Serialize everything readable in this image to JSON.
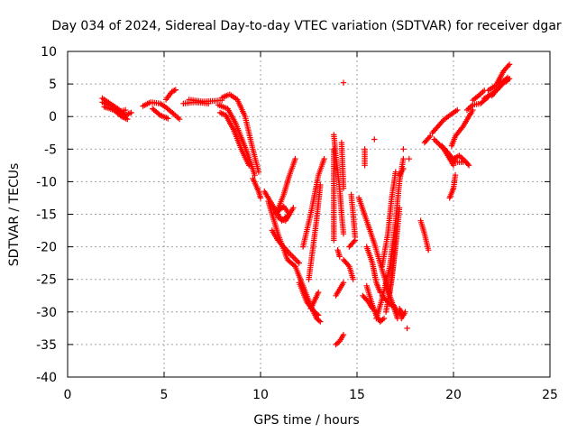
{
  "chart_data": {
    "type": "scatter",
    "title": "Day 034 of 2024, Sidereal Day-to-day VTEC variation (SDTVAR) for receiver dgar",
    "xlabel": "GPS time / hours",
    "ylabel": "SDTVAR / TECUs",
    "xlim": [
      0,
      25
    ],
    "ylim": [
      -40,
      10
    ],
    "x_ticks": [
      "0",
      "5",
      "10",
      "15",
      "20",
      "25"
    ],
    "y_ticks": [
      "10",
      "5",
      "0",
      "-5",
      "-10",
      "-15",
      "-20",
      "-25",
      "-30",
      "-35",
      "-40"
    ],
    "grid": true,
    "marker": "plus",
    "color": "#ff0000",
    "series": [
      {
        "segments": [
          [
            [
              1.8,
              2.8
            ],
            [
              2.2,
              2.0
            ],
            [
              2.6,
              1.2
            ],
            [
              3.0,
              0.2
            ],
            [
              3.3,
              0.6
            ]
          ],
          [
            [
              1.9,
              1.5
            ],
            [
              2.4,
              1.0
            ],
            [
              2.8,
              0.0
            ],
            [
              3.1,
              -0.4
            ]
          ],
          [
            [
              1.8,
              2.2
            ],
            [
              2.3,
              1.6
            ],
            [
              2.7,
              0.8
            ],
            [
              3.0,
              1.0
            ]
          ],
          [
            [
              3.9,
              1.6
            ],
            [
              4.3,
              2.2
            ],
            [
              4.8,
              2.0
            ],
            [
              5.1,
              1.4
            ],
            [
              5.5,
              0.4
            ],
            [
              5.8,
              -0.4
            ]
          ],
          [
            [
              4.4,
              1.2
            ],
            [
              4.8,
              0.2
            ],
            [
              5.2,
              -0.3
            ]
          ],
          [
            [
              5.1,
              2.6
            ],
            [
              5.4,
              3.8
            ],
            [
              5.6,
              4.1
            ]
          ],
          [
            [
              6.3,
              2.6
            ],
            [
              7.0,
              2.3
            ],
            [
              7.6,
              2.4
            ],
            [
              8.0,
              2.5
            ]
          ],
          [
            [
              6.0,
              2.0
            ],
            [
              6.6,
              2.2
            ],
            [
              7.3,
              2.0
            ]
          ],
          [
            [
              8.0,
              2.9
            ],
            [
              8.4,
              3.4
            ],
            [
              8.8,
              2.6
            ],
            [
              9.2,
              0.0
            ],
            [
              9.6,
              -5.0
            ],
            [
              9.9,
              -8.5
            ]
          ],
          [
            [
              7.8,
              1.8
            ],
            [
              8.3,
              1.2
            ],
            [
              8.7,
              -1.0
            ],
            [
              9.0,
              -3.2
            ],
            [
              9.3,
              -5.5
            ],
            [
              9.7,
              -9.0
            ]
          ],
          [
            [
              7.9,
              0.6
            ],
            [
              8.2,
              0.2
            ],
            [
              8.6,
              -2.0
            ],
            [
              9.0,
              -5.0
            ],
            [
              9.4,
              -7.5
            ]
          ],
          [
            [
              9.6,
              -9.5
            ],
            [
              9.9,
              -11.5
            ],
            [
              10.0,
              -12.5
            ]
          ],
          [
            [
              10.2,
              -11.5
            ],
            [
              10.7,
              -14.0
            ],
            [
              11.1,
              -16.0
            ],
            [
              11.5,
              -15.0
            ],
            [
              11.2,
              -13.8
            ],
            [
              10.8,
              -14.8
            ]
          ],
          [
            [
              10.4,
              -13.0
            ],
            [
              10.9,
              -18.0
            ],
            [
              11.4,
              -22.0
            ],
            [
              11.8,
              -23.0
            ]
          ],
          [
            [
              10.8,
              -15.0
            ],
            [
              11.2,
              -12.0
            ],
            [
              11.5,
              -9.0
            ],
            [
              11.8,
              -6.5
            ]
          ],
          [
            [
              10.9,
              -15.5
            ],
            [
              11.3,
              -16.0
            ],
            [
              11.7,
              -14.0
            ]
          ],
          [
            [
              10.6,
              -17.5
            ],
            [
              10.9,
              -19.0
            ],
            [
              11.5,
              -21.0
            ],
            [
              12.0,
              -22.5
            ]
          ],
          [
            [
              11.8,
              -23.0
            ],
            [
              12.2,
              -26.0
            ],
            [
              12.6,
              -29.0
            ],
            [
              12.9,
              -31.0
            ],
            [
              13.1,
              -31.5
            ]
          ],
          [
            [
              12.0,
              -25.5
            ],
            [
              12.4,
              -28.5
            ],
            [
              12.8,
              -30.0
            ],
            [
              13.0,
              -30.5
            ]
          ],
          [
            [
              12.6,
              -29.5
            ],
            [
              13.0,
              -27.0
            ]
          ],
          [
            [
              12.2,
              -20.0
            ],
            [
              12.6,
              -15.0
            ],
            [
              13.0,
              -9.0
            ],
            [
              13.3,
              -6.5
            ]
          ],
          [
            [
              12.5,
              -25.0
            ],
            [
              12.9,
              -16.0
            ],
            [
              13.1,
              -10.5
            ]
          ],
          [
            [
              13.9,
              -35.0
            ],
            [
              14.1,
              -34.5
            ],
            [
              14.3,
              -33.5
            ]
          ],
          [
            [
              13.8,
              -2.8
            ],
            [
              13.9,
              -6.0
            ],
            [
              14.1,
              -11.0
            ],
            [
              14.2,
              -15.0
            ],
            [
              14.3,
              -18.0
            ]
          ],
          [
            [
              13.8,
              -5.0
            ],
            [
              13.8,
              -10.0
            ],
            [
              13.8,
              -15.0
            ],
            [
              13.8,
              -19.0
            ]
          ],
          [
            [
              14.2,
              -4.0
            ],
            [
              14.3,
              -11.0
            ]
          ],
          [
            [
              13.9,
              -27.5
            ],
            [
              14.1,
              -26.5
            ],
            [
              14.3,
              -25.5
            ]
          ],
          [
            [
              14.3,
              -22.0
            ],
            [
              14.6,
              -23.0
            ],
            [
              14.8,
              -25.0
            ]
          ],
          [
            [
              14.0,
              -20.5
            ],
            [
              14.1,
              -21.5
            ]
          ],
          [
            [
              14.3,
              5.2
            ]
          ],
          [
            [
              14.7,
              -12.0
            ],
            [
              14.8,
              -15.0
            ],
            [
              14.9,
              -18.5
            ]
          ],
          [
            [
              14.6,
              -20.0
            ],
            [
              14.9,
              -19.0
            ]
          ],
          [
            [
              15.4,
              -5.0
            ],
            [
              15.4,
              -7.5
            ]
          ],
          [
            [
              15.9,
              -3.5
            ]
          ],
          [
            [
              15.1,
              -12.5
            ],
            [
              15.5,
              -16.0
            ],
            [
              15.9,
              -19.5
            ],
            [
              16.3,
              -23.5
            ],
            [
              16.7,
              -27.5
            ],
            [
              17.1,
              -31.0
            ]
          ],
          [
            [
              15.5,
              -26.0
            ],
            [
              15.8,
              -29.0
            ],
            [
              16.0,
              -30.5
            ]
          ],
          [
            [
              15.3,
              -27.5
            ],
            [
              15.6,
              -28.5
            ],
            [
              15.8,
              -29.5
            ]
          ],
          [
            [
              15.5,
              -20.0
            ],
            [
              15.8,
              -22.5
            ],
            [
              16.0,
              -25.5
            ],
            [
              16.2,
              -27.0
            ]
          ],
          [
            [
              16.0,
              -30.5
            ],
            [
              16.2,
              -31.5
            ],
            [
              16.4,
              -31.0
            ]
          ],
          [
            [
              16.0,
              -31.0
            ],
            [
              16.3,
              -28.0
            ],
            [
              16.7,
              -23.0
            ],
            [
              17.0,
              -16.0
            ],
            [
              17.2,
              -10.0
            ],
            [
              17.4,
              -6.5
            ]
          ],
          [
            [
              16.3,
              -23.0
            ],
            [
              16.6,
              -18.0
            ],
            [
              16.8,
              -12.5
            ],
            [
              17.0,
              -8.5
            ]
          ],
          [
            [
              16.5,
              -30.0
            ],
            [
              16.8,
              -25.0
            ],
            [
              17.0,
              -20.0
            ],
            [
              17.2,
              -14.0
            ]
          ],
          [
            [
              16.7,
              -27.0
            ],
            [
              16.9,
              -22.0
            ],
            [
              17.1,
              -17.0
            ]
          ],
          [
            [
              16.3,
              -27.5
            ],
            [
              16.6,
              -28.5
            ],
            [
              16.8,
              -29.0
            ]
          ],
          [
            [
              16.9,
              -29.0
            ],
            [
              17.1,
              -30.0
            ],
            [
              17.3,
              -30.5
            ]
          ],
          [
            [
              17.3,
              -31.0
            ],
            [
              17.5,
              -30.0
            ]
          ],
          [
            [
              17.2,
              -29.5
            ],
            [
              17.4,
              -30.5
            ]
          ],
          [
            [
              17.2,
              -9.0
            ],
            [
              17.4,
              -8.0
            ]
          ],
          [
            [
              17.4,
              -5.0
            ]
          ],
          [
            [
              17.7,
              -6.5
            ]
          ],
          [
            [
              17.6,
              -32.5
            ]
          ],
          [
            [
              18.3,
              -16.0
            ],
            [
              18.5,
              -18.0
            ],
            [
              18.7,
              -20.5
            ]
          ],
          [
            [
              18.5,
              -4.0
            ],
            [
              18.8,
              -3.0
            ]
          ],
          [
            [
              18.9,
              -2.5
            ],
            [
              19.2,
              -1.5
            ],
            [
              19.5,
              -0.5
            ],
            [
              19.9,
              0.4
            ],
            [
              20.2,
              1.0
            ]
          ],
          [
            [
              19.0,
              -3.5
            ],
            [
              19.5,
              -5.0
            ],
            [
              19.8,
              -6.5
            ],
            [
              20.0,
              -7.5
            ]
          ],
          [
            [
              19.4,
              -4.5
            ],
            [
              19.7,
              -5.5
            ],
            [
              20.1,
              -7.0
            ],
            [
              20.5,
              -7.0
            ]
          ],
          [
            [
              20.0,
              -6.5
            ],
            [
              20.3,
              -6.0
            ],
            [
              20.6,
              -6.8
            ],
            [
              20.8,
              -7.5
            ]
          ],
          [
            [
              19.8,
              -12.5
            ],
            [
              20.0,
              -11.0
            ],
            [
              20.1,
              -9.0
            ]
          ],
          [
            [
              19.9,
              -4.5
            ],
            [
              20.1,
              -3.0
            ],
            [
              20.5,
              -1.5
            ],
            [
              20.8,
              0.0
            ],
            [
              21.0,
              1.0
            ]
          ],
          [
            [
              20.7,
              1.0
            ],
            [
              21.0,
              1.8
            ],
            [
              21.4,
              2.0
            ],
            [
              21.8,
              3.0
            ]
          ],
          [
            [
              21.6,
              2.8
            ],
            [
              22.0,
              3.5
            ],
            [
              22.4,
              4.5
            ],
            [
              22.8,
              6.0
            ]
          ],
          [
            [
              21.8,
              4.0
            ],
            [
              22.2,
              4.8
            ],
            [
              22.6,
              7.0
            ],
            [
              22.9,
              8.0
            ]
          ],
          [
            [
              22.0,
              3.2
            ],
            [
              22.5,
              5.0
            ],
            [
              22.8,
              5.5
            ]
          ],
          [
            [
              22.3,
              5.2
            ],
            [
              22.6,
              5.5
            ],
            [
              22.9,
              5.8
            ]
          ],
          [
            [
              21.0,
              2.5
            ],
            [
              21.3,
              3.2
            ],
            [
              21.6,
              4.0
            ]
          ]
        ]
      }
    ]
  }
}
